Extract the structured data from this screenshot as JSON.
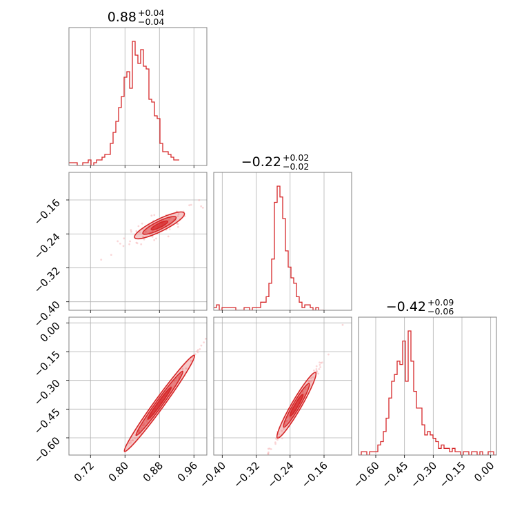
{
  "chart_data": {
    "type": "corner",
    "color": "#d62728",
    "parameters": [
      {
        "id": "p0",
        "median": "0.88",
        "plus": "+0.04",
        "minus": "−0.04"
      },
      {
        "id": "p1",
        "median": "−0.22",
        "plus": "+0.02",
        "minus": "−0.02"
      },
      {
        "id": "p2",
        "median": "−0.42",
        "plus": "+0.09",
        "minus": "−0.06"
      }
    ],
    "axes": {
      "p0": {
        "range": [
          0.67,
          0.99
        ],
        "ticks": [
          0.72,
          0.8,
          0.88,
          0.96
        ],
        "tick_labels": [
          "0.72",
          "0.80",
          "0.88",
          "0.96"
        ]
      },
      "p1": {
        "range": [
          -0.42,
          -0.095
        ],
        "ticks": [
          -0.4,
          -0.32,
          -0.24,
          -0.16
        ],
        "tick_labels": [
          "−0.40",
          "−0.32",
          "−0.24",
          "−0.16"
        ]
      },
      "p2": {
        "range": [
          -0.69,
          0.03
        ],
        "ticks": [
          -0.6,
          -0.45,
          -0.3,
          -0.15,
          0.0
        ],
        "tick_labels": [
          "−0.60",
          "−0.45",
          "−0.30",
          "−0.15",
          "0.00"
        ]
      }
    },
    "histograms": {
      "p0": {
        "bin_start": 0.67,
        "bin_width": 0.0064,
        "counts": [
          1,
          1,
          1,
          0,
          0,
          1,
          1,
          2,
          0,
          1,
          2,
          2,
          3,
          4,
          4,
          8,
          12,
          16,
          21,
          25,
          32,
          34,
          28,
          45,
          40,
          37,
          42,
          36,
          35,
          24,
          23,
          18,
          17,
          8,
          5,
          5,
          4,
          3,
          2,
          2
        ]
      },
      "p1": {
        "bin_start": -0.42,
        "bin_width": 0.0065,
        "counts": [
          1,
          2,
          0,
          1,
          1,
          1,
          1,
          1,
          0,
          0,
          0,
          1,
          1,
          0,
          1,
          1,
          1,
          3,
          3,
          5,
          10,
          19,
          40,
          46,
          42,
          34,
          22,
          16,
          12,
          10,
          5,
          3,
          1,
          2,
          2,
          1,
          0,
          1,
          0,
          0
        ]
      },
      "p2": {
        "bin_start": -0.69,
        "bin_width": 0.0144,
        "counts": [
          0,
          1,
          1,
          0,
          1,
          1,
          1,
          3,
          4,
          7,
          11,
          17,
          22,
          24,
          28,
          27,
          34,
          22,
          37,
          28,
          19,
          14,
          14,
          9,
          6,
          7,
          6,
          5,
          4,
          2,
          3,
          2,
          2,
          1,
          2,
          1,
          1,
          0,
          1,
          1,
          0,
          1,
          1,
          0,
          1,
          0,
          0,
          1,
          1,
          0
        ]
      }
    },
    "pairs": [
      {
        "x": "p0",
        "y": "p1",
        "center": [
          0.88,
          -0.22
        ],
        "slope": 0.5,
        "sd_major": 0.032,
        "sd_minor": 0.008
      },
      {
        "x": "p0",
        "y": "p2",
        "center": [
          0.88,
          -0.42
        ],
        "slope": 3.1,
        "sd_major": 0.045,
        "sd_minor": 0.004
      },
      {
        "x": "p1",
        "y": "p2",
        "center": [
          -0.225,
          -0.43
        ],
        "slope": 3.8,
        "sd_major": 0.025,
        "sd_minor": 0.008
      }
    ],
    "grid": true
  }
}
